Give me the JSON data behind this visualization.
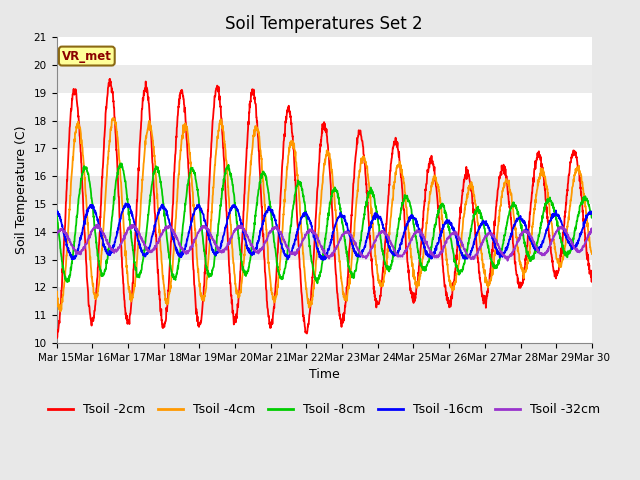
{
  "title": "Soil Temperatures Set 2",
  "xlabel": "Time",
  "ylabel": "Soil Temperature (C)",
  "ylim": [
    10.0,
    21.0
  ],
  "yticks": [
    10.0,
    11.0,
    12.0,
    13.0,
    14.0,
    15.0,
    16.0,
    17.0,
    18.0,
    19.0,
    20.0,
    21.0
  ],
  "start_day": 15,
  "end_day": 30,
  "n_points": 2000,
  "annotation_text": "VR_met",
  "series": [
    {
      "label": "Tsoil -2cm",
      "color": "#FF0000"
    },
    {
      "label": "Tsoil -4cm",
      "color": "#FF9900"
    },
    {
      "label": "Tsoil -8cm",
      "color": "#00CC00"
    },
    {
      "label": "Tsoil -16cm",
      "color": "#0000FF"
    },
    {
      "label": "Tsoil -32cm",
      "color": "#9933CC"
    }
  ],
  "background_color": "#E8E8E8",
  "plot_bg_color_light": "#EBEBEB",
  "plot_bg_color_dark": "#DCDCDC",
  "grid_color": "#FFFFFF",
  "title_fontsize": 12,
  "label_fontsize": 9,
  "tick_fontsize": 7.5,
  "legend_fontsize": 9,
  "line_width": 1.3
}
